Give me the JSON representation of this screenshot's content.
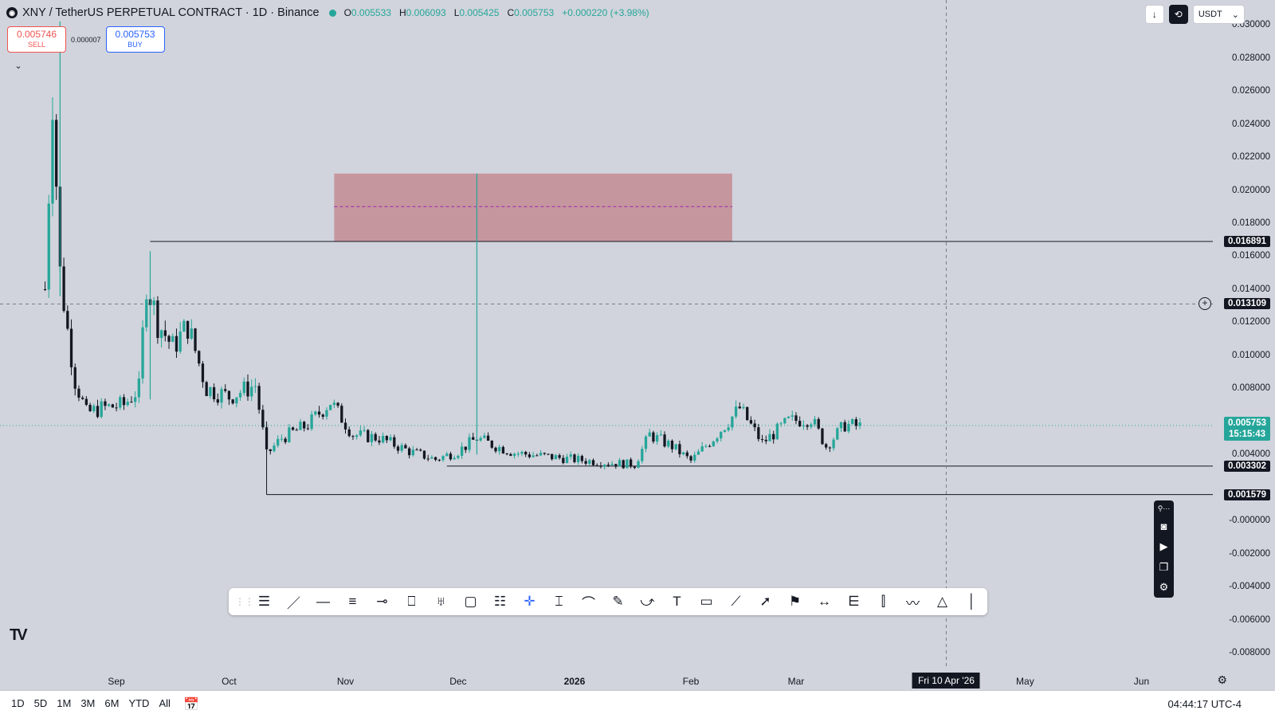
{
  "header": {
    "symbol_title": "XNY / TetherUS PERPETUAL CONTRACT · 1D · Binance",
    "ohlc": [
      {
        "key": "O",
        "value": "0.005533"
      },
      {
        "key": "H",
        "value": "0.006093"
      },
      {
        "key": "L",
        "value": "0.005425"
      },
      {
        "key": "C",
        "value": "0.005753"
      }
    ],
    "change": "+0.000220 (+3.98%)"
  },
  "trade": {
    "sell_price": "0.005746",
    "sell_label": "SELL",
    "spread": "0.000007",
    "buy_price": "0.005753",
    "buy_label": "BUY"
  },
  "toolbar_right": {
    "currency": "USDT"
  },
  "price_axis": {
    "labels": [
      "0.030000",
      "0.028000",
      "0.026000",
      "0.024000",
      "0.022000",
      "0.020000",
      "0.018000",
      "0.016000",
      "0.014000",
      "0.012000",
      "0.010000",
      "0.008000",
      "0.004000",
      "-0.000000",
      "-0.002000",
      "-0.004000",
      "-0.006000",
      "-0.008000"
    ],
    "tags": {
      "resistance": "0.016891",
      "crosshair": "0.013109",
      "current": "0.005753",
      "countdown": "15:15:43",
      "support_1": "0.003302",
      "support_2": "0.001579"
    }
  },
  "time_axis": {
    "labels": [
      "Sep",
      "Oct",
      "Nov",
      "Dec",
      "2026",
      "Feb",
      "Mar",
      "May",
      "Jun"
    ],
    "crosshair_date": "Fri 10 Apr '26"
  },
  "bottom_bar": {
    "ranges": [
      "1D",
      "5D",
      "1M",
      "3M",
      "6M",
      "YTD",
      "All"
    ],
    "clock": "04:44:17 UTC-4"
  },
  "drawing_tools": [
    "multi-line",
    "trend-line",
    "horizontal-ray",
    "parallel-channel",
    "horizontal-line",
    "callout",
    "candles-pattern",
    "rectangle",
    "fib-retracement",
    "crosshair",
    "price-range",
    "arc",
    "brush",
    "path",
    "text",
    "comment",
    "ruler",
    "arrow",
    "flag",
    "date-range",
    "gann",
    "bars-pattern",
    "forecast",
    "polyline",
    "measure",
    "vertical-line"
  ],
  "colors": {
    "bull": "#26a69a",
    "bear": "#131722",
    "zone": "#c48b93",
    "zone_mid": "#9c27b0",
    "background": "#d1d4dc"
  },
  "chart_data": {
    "type": "candlestick",
    "title": "",
    "xlabel": "",
    "ylabel": "",
    "ylim": [
      -0.009,
      0.0315
    ],
    "x_range": [
      "2025-08-01",
      "2026-06-20"
    ],
    "x_ticks": [
      {
        "label": "Sep",
        "date": "2025-09-01"
      },
      {
        "label": "Oct",
        "date": "2025-10-01"
      },
      {
        "label": "Nov",
        "date": "2025-11-01"
      },
      {
        "label": "Dec",
        "date": "2025-12-01"
      },
      {
        "label": "2026",
        "date": "2026-01-01"
      },
      {
        "label": "Feb",
        "date": "2026-02-01"
      },
      {
        "label": "Mar",
        "date": "2026-03-01"
      },
      {
        "label": "May",
        "date": "2026-05-01"
      },
      {
        "label": "Jun",
        "date": "2026-06-01"
      }
    ],
    "close_series": [
      {
        "date": "2025-08-13",
        "close": 0.014
      },
      {
        "date": "2025-08-15",
        "close": 0.026
      },
      {
        "date": "2025-08-17",
        "close": 0.015
      },
      {
        "date": "2025-08-19",
        "close": 0.0115
      },
      {
        "date": "2025-08-21",
        "close": 0.0085
      },
      {
        "date": "2025-08-24",
        "close": 0.0065
      },
      {
        "date": "2025-08-28",
        "close": 0.0068
      },
      {
        "date": "2025-09-03",
        "close": 0.007
      },
      {
        "date": "2025-09-07",
        "close": 0.008
      },
      {
        "date": "2025-09-09",
        "close": 0.0145
      },
      {
        "date": "2025-09-12",
        "close": 0.012
      },
      {
        "date": "2025-09-16",
        "close": 0.0105
      },
      {
        "date": "2025-09-20",
        "close": 0.0118
      },
      {
        "date": "2025-09-25",
        "close": 0.008
      },
      {
        "date": "2025-10-01",
        "close": 0.0075
      },
      {
        "date": "2025-10-08",
        "close": 0.0082
      },
      {
        "date": "2025-10-11",
        "close": 0.004
      },
      {
        "date": "2025-10-15",
        "close": 0.005
      },
      {
        "date": "2025-10-22",
        "close": 0.0058
      },
      {
        "date": "2025-10-28",
        "close": 0.0072
      },
      {
        "date": "2025-11-03",
        "close": 0.0052
      },
      {
        "date": "2025-11-10",
        "close": 0.005
      },
      {
        "date": "2025-11-18",
        "close": 0.0042
      },
      {
        "date": "2025-11-25",
        "close": 0.0037
      },
      {
        "date": "2025-12-01",
        "close": 0.0042
      },
      {
        "date": "2025-12-06",
        "close": 0.005
      },
      {
        "date": "2025-12-10",
        "close": 0.0046
      },
      {
        "date": "2025-12-16",
        "close": 0.0041
      },
      {
        "date": "2025-12-24",
        "close": 0.0039
      },
      {
        "date": "2026-01-01",
        "close": 0.0037
      },
      {
        "date": "2026-01-10",
        "close": 0.0035
      },
      {
        "date": "2026-01-17",
        "close": 0.0034
      },
      {
        "date": "2026-01-21",
        "close": 0.0052
      },
      {
        "date": "2026-01-27",
        "close": 0.0045
      },
      {
        "date": "2026-02-01",
        "close": 0.0036
      },
      {
        "date": "2026-02-07",
        "close": 0.005
      },
      {
        "date": "2026-02-14",
        "close": 0.0068
      },
      {
        "date": "2026-02-20",
        "close": 0.0047
      },
      {
        "date": "2026-02-27",
        "close": 0.006
      },
      {
        "date": "2026-03-05",
        "close": 0.0062
      },
      {
        "date": "2026-03-09",
        "close": 0.0045
      },
      {
        "date": "2026-03-14",
        "close": 0.0058
      },
      {
        "date": "2026-03-18",
        "close": 0.0057
      }
    ],
    "spikes": [
      {
        "date": "2025-08-17",
        "high": 0.0302
      },
      {
        "date": "2025-09-10",
        "high": 0.0163
      },
      {
        "date": "2025-12-06",
        "high": 0.021,
        "low": 0.004
      }
    ],
    "zone": {
      "start": "2025-10-29",
      "end": "2026-02-12",
      "top": 0.021,
      "bottom": 0.0169,
      "mid": 0.019
    },
    "levels": [
      {
        "value": 0.016891,
        "start": "2025-09-10"
      },
      {
        "value": 0.003302,
        "start": "2025-11-28"
      },
      {
        "value": 0.001579,
        "start": "2025-10-11"
      }
    ],
    "current_price": 0.005753,
    "crosshair": {
      "price": 0.013109,
      "date": "2026-04-10"
    }
  }
}
